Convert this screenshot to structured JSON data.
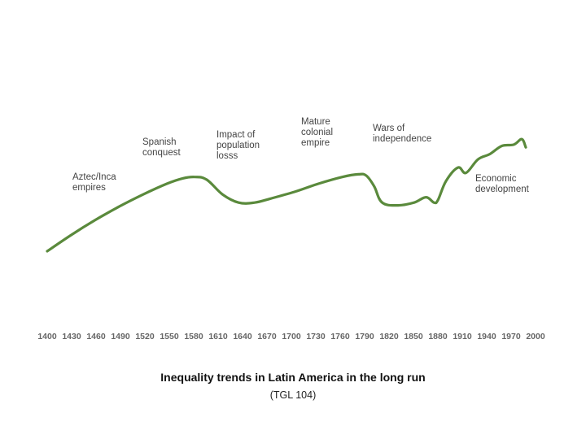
{
  "chart_data": {
    "type": "line",
    "title": "Inequality trends in Latin America in the long run",
    "subtitle": "(TGL 104)",
    "xlabel": "",
    "ylabel": "",
    "grid": false,
    "line_color": "#5a8a3c",
    "x_ticks": [
      1400,
      1430,
      1460,
      1490,
      1520,
      1550,
      1580,
      1610,
      1640,
      1670,
      1700,
      1730,
      1760,
      1790,
      1820,
      1850,
      1880,
      1910,
      1940,
      1970,
      2000
    ],
    "x_tick_labels": [
      "1400",
      "1430",
      "1460",
      "1490",
      "1520",
      "1550",
      "1580",
      "1610",
      "1640",
      "1670",
      "1700",
      "1730",
      "1760",
      "1790",
      "1820",
      "1850",
      "1880",
      "1910",
      "1940",
      "1970",
      "2000"
    ],
    "xlim": [
      1400,
      2000
    ],
    "ylim": [
      0,
      100
    ],
    "series": [
      {
        "name": "Inequality",
        "x": [
          1400,
          1430,
          1460,
          1490,
          1520,
          1550,
          1570,
          1585,
          1600,
          1620,
          1640,
          1660,
          1680,
          1710,
          1740,
          1770,
          1790,
          1800,
          1810,
          1820,
          1840,
          1860,
          1875,
          1885,
          1890,
          1900,
          1915,
          1925,
          1940,
          1955,
          1970,
          1985,
          1995,
          2000
        ],
        "y": [
          0,
          12,
          23,
          33,
          42,
          50,
          54,
          55,
          53,
          42,
          36,
          36,
          39,
          44,
          50,
          55,
          57,
          56,
          48,
          36,
          34,
          36,
          40,
          36,
          38,
          52,
          62,
          58,
          68,
          72,
          78,
          79,
          83,
          77
        ]
      }
    ],
    "annotations": [
      {
        "lines": [
          "Aztec/Inca",
          "empires"
        ]
      },
      {
        "lines": [
          "Spanish",
          "conquest"
        ]
      },
      {
        "lines": [
          "Impact of",
          "population",
          "losss"
        ]
      },
      {
        "lines": [
          "Mature",
          "colonial",
          "empire"
        ]
      },
      {
        "lines": [
          "Wars of",
          "independence"
        ]
      },
      {
        "lines": [
          "Economic",
          "development"
        ]
      }
    ]
  }
}
